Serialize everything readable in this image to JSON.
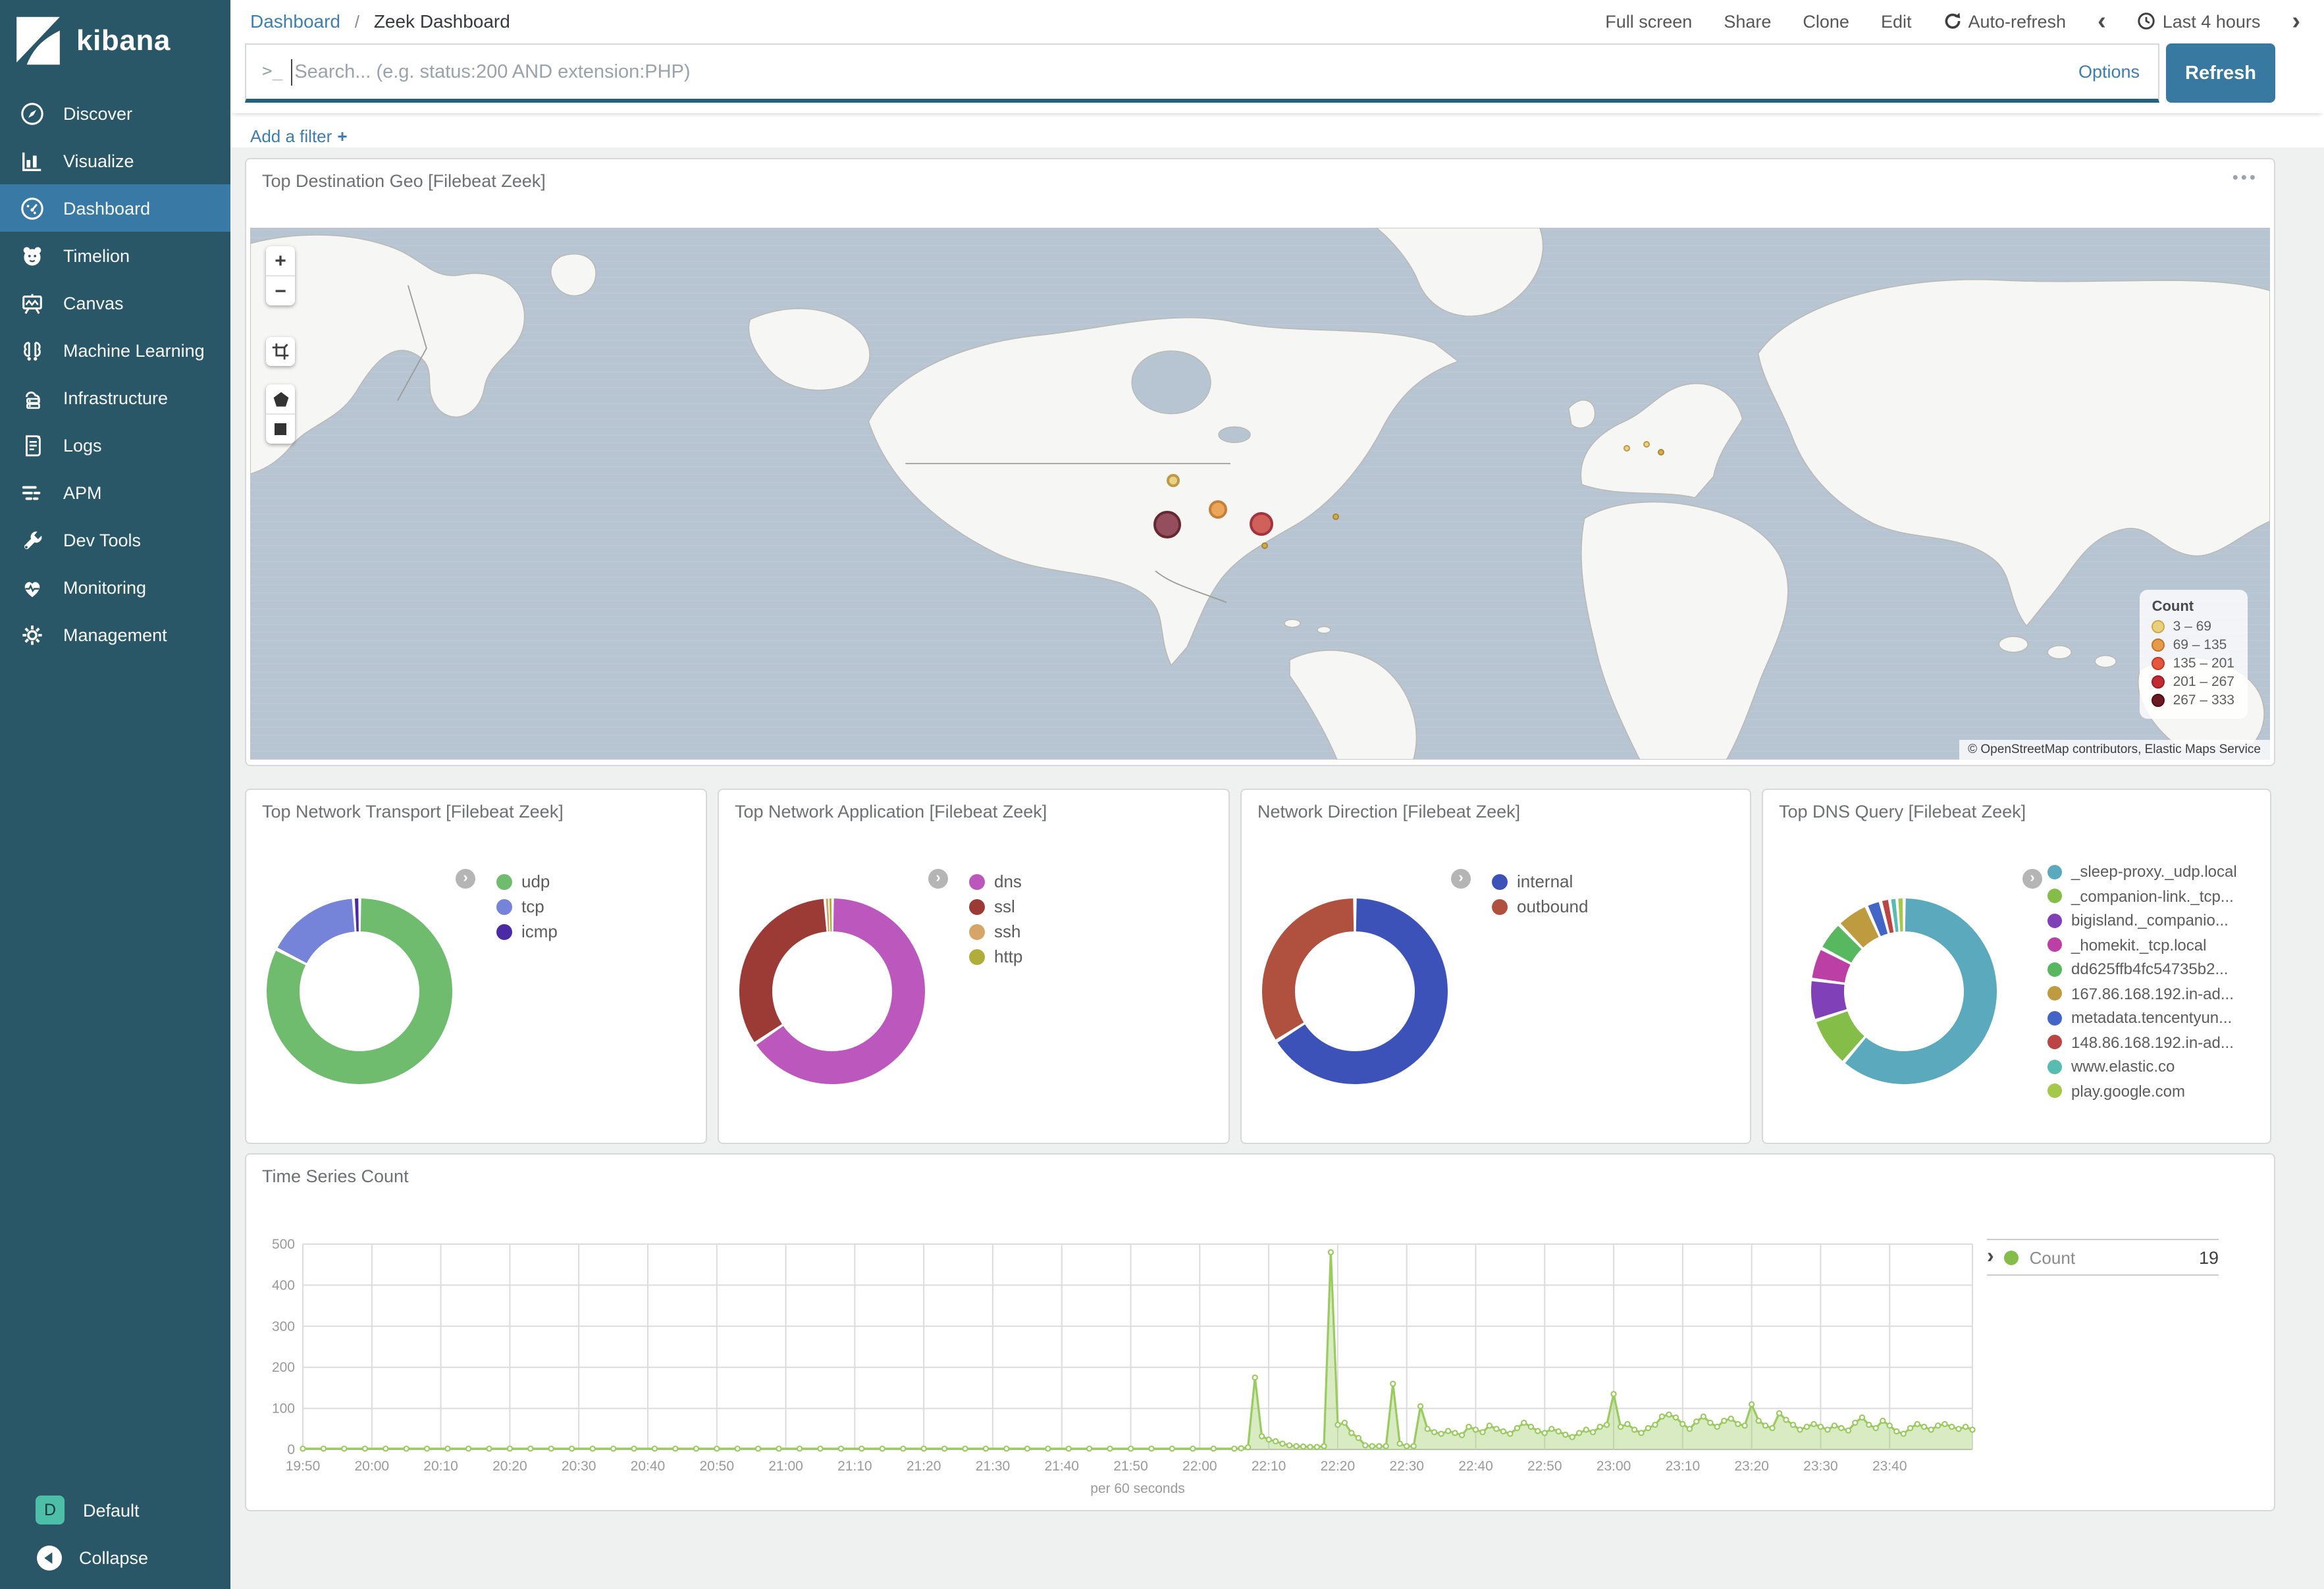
{
  "sidebar": {
    "logo_text": "kibana",
    "items": [
      {
        "label": "Discover",
        "icon": "compass-icon",
        "selected": false
      },
      {
        "label": "Visualize",
        "icon": "bar-chart-icon",
        "selected": false
      },
      {
        "label": "Dashboard",
        "icon": "gauge-icon",
        "selected": true
      },
      {
        "label": "Timelion",
        "icon": "timelion-icon",
        "selected": false
      },
      {
        "label": "Canvas",
        "icon": "easel-icon",
        "selected": false
      },
      {
        "label": "Machine Learning",
        "icon": "ml-icon",
        "selected": false
      },
      {
        "label": "Infrastructure",
        "icon": "infrastructure-icon",
        "selected": false
      },
      {
        "label": "Logs",
        "icon": "logs-icon",
        "selected": false
      },
      {
        "label": "APM",
        "icon": "apm-icon",
        "selected": false
      },
      {
        "label": "Dev Tools",
        "icon": "wrench-icon",
        "selected": false
      },
      {
        "label": "Monitoring",
        "icon": "heartbeat-icon",
        "selected": false
      },
      {
        "label": "Management",
        "icon": "gear-icon",
        "selected": false
      }
    ],
    "space_initial": "D",
    "space_label": "Default",
    "collapse_label": "Collapse"
  },
  "topbar": {
    "breadcrumb_link": "Dashboard",
    "breadcrumb_sep": "/",
    "breadcrumb_current": "Zeek Dashboard",
    "menu": [
      "Full screen",
      "Share",
      "Clone",
      "Edit"
    ],
    "auto_refresh": "Auto-refresh",
    "time_prev": "‹",
    "time_range": "Last 4 hours",
    "time_next": "›"
  },
  "search": {
    "prompt": ">_",
    "placeholder": "Search... (e.g. status:200 AND extension:PHP)",
    "options_label": "Options",
    "refresh_label": "Refresh"
  },
  "filter_bar": {
    "add_filter": "Add a filter",
    "plus": "+"
  },
  "map_panel": {
    "options_icon": "•••",
    "attribution": "© OpenStreetMap contributors, Elastic Maps Service"
  },
  "ts_legend": {
    "name": "Count",
    "value": "19"
  },
  "chart_data": [
    {
      "type": "map",
      "title": "Top Destination Geo [Filebeat Zeek]",
      "legend_title": "Count",
      "ranges": [
        {
          "label": "3 – 69",
          "color": "#e9d17b",
          "border": "#c9a94e"
        },
        {
          "label": "69 – 135",
          "color": "#e59b4b",
          "border": "#c1762a"
        },
        {
          "label": "135 – 201",
          "color": "#e4573e",
          "border": "#bd3a26"
        },
        {
          "label": "201 – 267",
          "color": "#c02a30",
          "border": "#951f26"
        },
        {
          "label": "267 – 333",
          "color": "#6b1a23",
          "border": "#4a1016"
        }
      ],
      "points": [
        {
          "x": 0.457,
          "y": 0.473,
          "r": 5,
          "fill": "#e9d17b",
          "border": "#b8933a"
        },
        {
          "x": 0.479,
          "y": 0.527,
          "r": 7,
          "fill": "#eba050",
          "border": "#c1762a"
        },
        {
          "x": 0.454,
          "y": 0.556,
          "r": 10.5,
          "fill": "#8d4051",
          "border": "#5d1722"
        },
        {
          "x": 0.5,
          "y": 0.554,
          "r": 9,
          "fill": "#cd544d",
          "border": "#9c2430"
        },
        {
          "x": 0.502,
          "y": 0.596,
          "r": 2.5,
          "fill": "#d3a93f",
          "border": "#a87f22"
        },
        {
          "x": 0.537,
          "y": 0.541,
          "r": 2.5,
          "fill": "#d3a93f",
          "border": "#a87f22"
        },
        {
          "x": 0.681,
          "y": 0.413,
          "r": 2.5,
          "fill": "#e9d17b",
          "border": "#b8933a"
        },
        {
          "x": 0.691,
          "y": 0.405,
          "r": 2.5,
          "fill": "#e9d17b",
          "border": "#b8933a"
        },
        {
          "x": 0.698,
          "y": 0.421,
          "r": 2.5,
          "fill": "#d3a93f",
          "border": "#a87f22"
        }
      ]
    },
    {
      "type": "pie",
      "donut": true,
      "title": "Top Network Transport [Filebeat Zeek]",
      "labels": [
        "udp",
        "tcp",
        "icmp"
      ],
      "values": [
        82.5,
        16.5,
        1
      ],
      "colors": [
        "#6fbc6f",
        "#7584d8",
        "#4b2aa5"
      ],
      "legend_position": "right"
    },
    {
      "type": "pie",
      "donut": true,
      "title": "Top Network Application [Filebeat Zeek]",
      "labels": [
        "dns",
        "ssl",
        "ssh",
        "http"
      ],
      "values": [
        65.5,
        33.3,
        0.6,
        0.6
      ],
      "colors": [
        "#bc57be",
        "#9c3a35",
        "#d6a567",
        "#b0ad3a"
      ],
      "legend_position": "right"
    },
    {
      "type": "pie",
      "donut": true,
      "title": "Network Direction [Filebeat Zeek]",
      "labels": [
        "internal",
        "outbound"
      ],
      "values": [
        66,
        34
      ],
      "colors": [
        "#3d52b8",
        "#b0513f"
      ],
      "legend_position": "right"
    },
    {
      "type": "pie",
      "donut": true,
      "title": "Top DNS Query [Filebeat Zeek]",
      "labels": [
        "_sleep-proxy._udp.local",
        "_companion-link._tcp...",
        "bigisland._companio...",
        "_homekit._tcp.local",
        "dd625ffb4fc54735b2...",
        "167.86.168.192.in-ad...",
        "metadata.tencentyun...",
        "148.86.168.192.in-ad...",
        "www.elastic.co",
        "play.google.com"
      ],
      "values": [
        60,
        8.5,
        7,
        5.5,
        5,
        5.5,
        2.5,
        1.6,
        1.2,
        1.2
      ],
      "colors": [
        "#5aa9bd",
        "#84bd48",
        "#8040b8",
        "#bb3fa4",
        "#57b85f",
        "#bf9b40",
        "#4465c8",
        "#bb4444",
        "#58bdb0",
        "#a4c848"
      ],
      "legend_position": "right"
    },
    {
      "type": "area",
      "title": "Time Series Count",
      "xlabel": "per 60 seconds",
      "ylim": [
        0,
        500
      ],
      "y_ticks": [
        0,
        100,
        200,
        300,
        400,
        500
      ],
      "x_ticks": [
        "19:50",
        "20:00",
        "20:10",
        "20:20",
        "20:30",
        "20:40",
        "20:50",
        "21:00",
        "21:10",
        "21:20",
        "21:30",
        "21:40",
        "21:50",
        "22:00",
        "22:10",
        "22:20",
        "22:30",
        "22:40",
        "22:50",
        "23:00",
        "23:10",
        "23:20",
        "23:30",
        "23:40"
      ],
      "x_tick_minutes": [
        0,
        10,
        20,
        30,
        40,
        50,
        60,
        70,
        80,
        90,
        100,
        110,
        120,
        130,
        140,
        150,
        160,
        170,
        180,
        190,
        200,
        210,
        220,
        230
      ],
      "x_domain_minutes": [
        0,
        242
      ],
      "series": [
        {
          "name": "Count",
          "color": "#9acb5e",
          "current_value": 19,
          "points": [
            [
              0,
              2
            ],
            [
              3,
              2
            ],
            [
              6,
              2
            ],
            [
              9,
              2
            ],
            [
              12,
              2
            ],
            [
              15,
              2
            ],
            [
              18,
              2
            ],
            [
              21,
              2
            ],
            [
              24,
              2
            ],
            [
              27,
              2
            ],
            [
              30,
              2
            ],
            [
              33,
              2
            ],
            [
              36,
              2
            ],
            [
              39,
              2
            ],
            [
              42,
              2
            ],
            [
              45,
              2
            ],
            [
              48,
              2
            ],
            [
              51,
              2
            ],
            [
              54,
              2
            ],
            [
              57,
              2
            ],
            [
              60,
              2
            ],
            [
              63,
              2
            ],
            [
              66,
              2
            ],
            [
              69,
              2
            ],
            [
              72,
              2
            ],
            [
              75,
              2
            ],
            [
              78,
              2
            ],
            [
              81,
              2
            ],
            [
              84,
              2
            ],
            [
              87,
              2
            ],
            [
              90,
              2
            ],
            [
              93,
              2
            ],
            [
              96,
              2
            ],
            [
              99,
              2
            ],
            [
              102,
              2
            ],
            [
              105,
              2
            ],
            [
              108,
              2
            ],
            [
              111,
              2
            ],
            [
              114,
              2
            ],
            [
              117,
              2
            ],
            [
              120,
              2
            ],
            [
              123,
              2
            ],
            [
              126,
              2
            ],
            [
              129,
              2
            ],
            [
              132,
              2
            ],
            [
              135,
              2
            ],
            [
              136,
              3
            ],
            [
              137,
              5
            ],
            [
              138,
              175
            ],
            [
              139,
              32
            ],
            [
              140,
              24
            ],
            [
              141,
              20
            ],
            [
              142,
              14
            ],
            [
              143,
              10
            ],
            [
              144,
              8
            ],
            [
              145,
              7
            ],
            [
              146,
              6
            ],
            [
              147,
              6
            ],
            [
              148,
              8
            ],
            [
              149,
              480
            ],
            [
              150,
              60
            ],
            [
              151,
              65
            ],
            [
              152,
              40
            ],
            [
              153,
              28
            ],
            [
              154,
              10
            ],
            [
              155,
              8
            ],
            [
              156,
              8
            ],
            [
              157,
              8
            ],
            [
              158,
              160
            ],
            [
              159,
              14
            ],
            [
              160,
              8
            ],
            [
              161,
              8
            ],
            [
              162,
              105
            ],
            [
              163,
              50
            ],
            [
              164,
              42
            ],
            [
              165,
              38
            ],
            [
              166,
              45
            ],
            [
              167,
              40
            ],
            [
              168,
              35
            ],
            [
              169,
              55
            ],
            [
              170,
              48
            ],
            [
              171,
              42
            ],
            [
              172,
              58
            ],
            [
              173,
              50
            ],
            [
              174,
              44
            ],
            [
              175,
              38
            ],
            [
              176,
              52
            ],
            [
              177,
              65
            ],
            [
              178,
              55
            ],
            [
              179,
              45
            ],
            [
              180,
              40
            ],
            [
              181,
              50
            ],
            [
              182,
              44
            ],
            [
              183,
              36
            ],
            [
              184,
              30
            ],
            [
              185,
              40
            ],
            [
              186,
              48
            ],
            [
              187,
              42
            ],
            [
              188,
              55
            ],
            [
              189,
              60
            ],
            [
              190,
              135
            ],
            [
              191,
              55
            ],
            [
              192,
              62
            ],
            [
              193,
              48
            ],
            [
              194,
              40
            ],
            [
              195,
              52
            ],
            [
              196,
              60
            ],
            [
              197,
              80
            ],
            [
              198,
              85
            ],
            [
              199,
              78
            ],
            [
              200,
              62
            ],
            [
              201,
              50
            ],
            [
              202,
              68
            ],
            [
              203,
              80
            ],
            [
              204,
              65
            ],
            [
              205,
              55
            ],
            [
              206,
              70
            ],
            [
              207,
              75
            ],
            [
              208,
              62
            ],
            [
              209,
              58
            ],
            [
              210,
              110
            ],
            [
              211,
              70
            ],
            [
              212,
              58
            ],
            [
              213,
              52
            ],
            [
              214,
              88
            ],
            [
              215,
              72
            ],
            [
              216,
              60
            ],
            [
              217,
              48
            ],
            [
              218,
              55
            ],
            [
              219,
              62
            ],
            [
              220,
              55
            ],
            [
              221,
              48
            ],
            [
              222,
              58
            ],
            [
              223,
              52
            ],
            [
              224,
              46
            ],
            [
              225,
              65
            ],
            [
              226,
              78
            ],
            [
              227,
              60
            ],
            [
              228,
              52
            ],
            [
              229,
              70
            ],
            [
              230,
              58
            ],
            [
              231,
              44
            ],
            [
              232,
              38
            ],
            [
              233,
              52
            ],
            [
              234,
              62
            ],
            [
              235,
              55
            ],
            [
              236,
              48
            ],
            [
              237,
              58
            ],
            [
              238,
              62
            ],
            [
              239,
              55
            ],
            [
              240,
              50
            ],
            [
              241,
              55
            ],
            [
              242,
              48
            ]
          ]
        }
      ]
    }
  ]
}
